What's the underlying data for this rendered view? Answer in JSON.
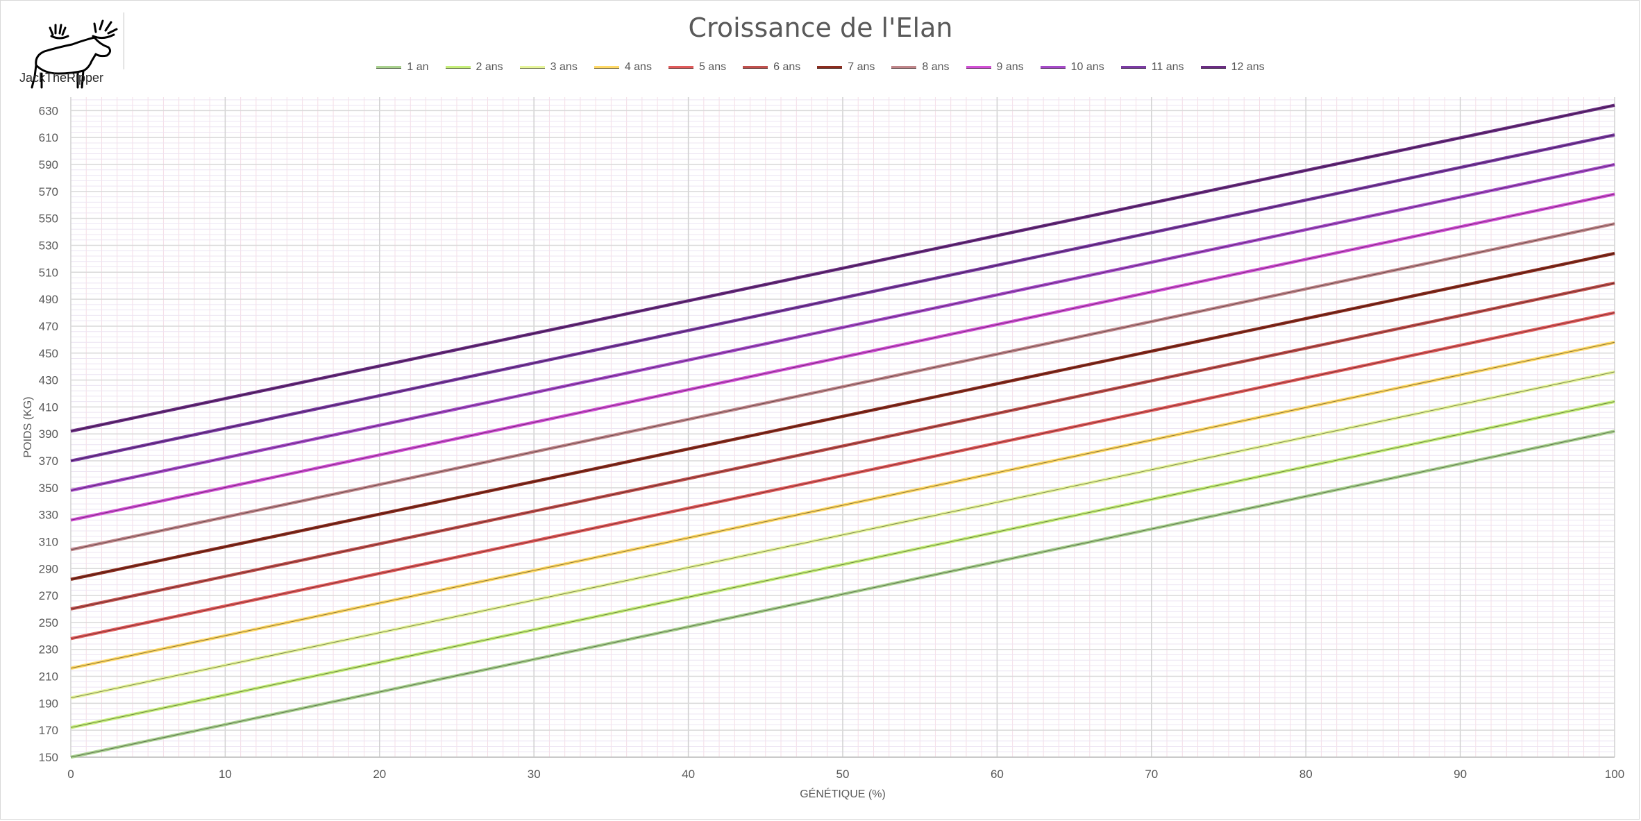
{
  "brand": {
    "name": "JackTheRipper",
    "icon": "moose-icon"
  },
  "chart_data": {
    "type": "line",
    "title": "Croissance de l'Elan",
    "xlabel": "GÉNÉTIQUE (%)",
    "ylabel": "POIDS (KG)",
    "xlim": [
      0,
      100
    ],
    "ylim": [
      150,
      640
    ],
    "x_ticks": [
      0,
      10,
      20,
      30,
      40,
      50,
      60,
      70,
      80,
      90,
      100
    ],
    "y_ticks": [
      150,
      170,
      190,
      210,
      230,
      250,
      270,
      290,
      310,
      330,
      350,
      370,
      390,
      410,
      430,
      450,
      470,
      490,
      510,
      530,
      550,
      570,
      590,
      610,
      630
    ],
    "grid": true,
    "legend_position": "top",
    "x": [
      0,
      100
    ],
    "series": [
      {
        "name": "1 an",
        "color": "#a9d18e",
        "values": [
          150,
          392
        ]
      },
      {
        "name": "2 ans",
        "color": "#c6ef7a",
        "values": [
          172,
          414
        ]
      },
      {
        "name": "3 ans",
        "color": "#e6f59a",
        "values": [
          194,
          436
        ]
      },
      {
        "name": "4 ans",
        "color": "#ffd966",
        "values": [
          216,
          458
        ]
      },
      {
        "name": "5 ans",
        "color": "#e05a5a",
        "values": [
          238,
          480
        ]
      },
      {
        "name": "6 ans",
        "color": "#c0504d",
        "values": [
          260,
          502
        ]
      },
      {
        "name": "7 ans",
        "color": "#8b2c1e",
        "values": [
          282,
          524
        ]
      },
      {
        "name": "8 ans",
        "color": "#c0868a",
        "values": [
          304,
          546
        ]
      },
      {
        "name": "9 ans",
        "color": "#d24fd6",
        "values": [
          326,
          568
        ]
      },
      {
        "name": "10 ans",
        "color": "#a64ac9",
        "values": [
          348,
          590
        ]
      },
      {
        "name": "11 ans",
        "color": "#7b3aa3",
        "values": [
          370,
          612
        ]
      },
      {
        "name": "12 ans",
        "color": "#6a2c82",
        "values": [
          392,
          634
        ]
      }
    ]
  }
}
